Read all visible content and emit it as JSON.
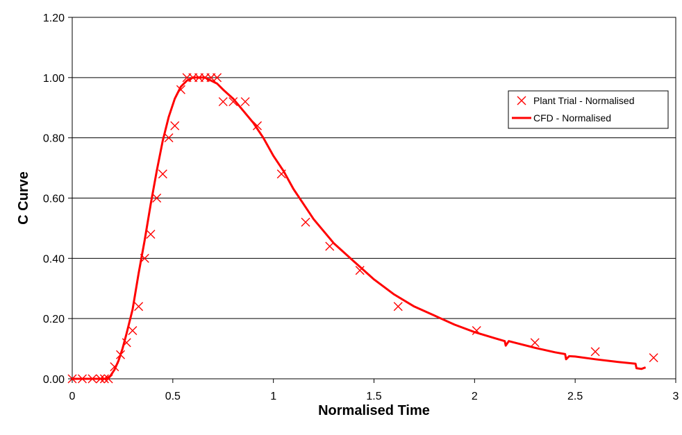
{
  "chart_data": {
    "type": "scatter",
    "title": "",
    "xlabel": "Normalised Time",
    "ylabel": "C Curve",
    "xlim": [
      0,
      3
    ],
    "ylim": [
      0,
      1.2
    ],
    "x_ticks": [
      0,
      0.5,
      1,
      1.5,
      2,
      2.5,
      3
    ],
    "x_tick_labels": [
      "0",
      "0.5",
      "1",
      "1.5",
      "2",
      "2.5",
      "3"
    ],
    "y_ticks": [
      0,
      0.2,
      0.4,
      0.6,
      0.8,
      1.0,
      1.2
    ],
    "y_tick_labels": [
      "0.00",
      "0.20",
      "0.40",
      "0.60",
      "0.80",
      "1.00",
      "1.20"
    ],
    "grid": "horizontal",
    "legend_position": "top-right",
    "color": "#ff0000",
    "series": [
      {
        "name": "Plant Trial - Normalised",
        "kind": "markers",
        "marker": "x",
        "points": [
          [
            0.0,
            0.0
          ],
          [
            0.05,
            0.0
          ],
          [
            0.1,
            0.0
          ],
          [
            0.14,
            0.0
          ],
          [
            0.16,
            0.0
          ],
          [
            0.18,
            0.0
          ],
          [
            0.21,
            0.04
          ],
          [
            0.24,
            0.08
          ],
          [
            0.27,
            0.12
          ],
          [
            0.3,
            0.16
          ],
          [
            0.33,
            0.24
          ],
          [
            0.36,
            0.4
          ],
          [
            0.39,
            0.48
          ],
          [
            0.42,
            0.6
          ],
          [
            0.45,
            0.68
          ],
          [
            0.48,
            0.8
          ],
          [
            0.51,
            0.84
          ],
          [
            0.54,
            0.96
          ],
          [
            0.57,
            1.0
          ],
          [
            0.6,
            1.0
          ],
          [
            0.63,
            1.0
          ],
          [
            0.66,
            1.0
          ],
          [
            0.69,
            1.0
          ],
          [
            0.72,
            1.0
          ],
          [
            0.75,
            0.92
          ],
          [
            0.8,
            0.92
          ],
          [
            0.86,
            0.92
          ],
          [
            0.92,
            0.84
          ],
          [
            1.04,
            0.68
          ],
          [
            1.16,
            0.52
          ],
          [
            1.28,
            0.44
          ],
          [
            1.43,
            0.36
          ],
          [
            1.62,
            0.24
          ],
          [
            2.01,
            0.16
          ],
          [
            2.3,
            0.12
          ],
          [
            2.6,
            0.09
          ],
          [
            2.89,
            0.07
          ]
        ]
      },
      {
        "name": "CFD - Normalised",
        "kind": "line",
        "points": [
          [
            0.0,
            0.0
          ],
          [
            0.15,
            0.0
          ],
          [
            0.17,
            0.0
          ],
          [
            0.19,
            0.01
          ],
          [
            0.21,
            0.03
          ],
          [
            0.23,
            0.06
          ],
          [
            0.25,
            0.1
          ],
          [
            0.27,
            0.15
          ],
          [
            0.3,
            0.23
          ],
          [
            0.33,
            0.35
          ],
          [
            0.36,
            0.46
          ],
          [
            0.39,
            0.58
          ],
          [
            0.42,
            0.69
          ],
          [
            0.45,
            0.79
          ],
          [
            0.48,
            0.87
          ],
          [
            0.51,
            0.93
          ],
          [
            0.54,
            0.97
          ],
          [
            0.57,
            0.99
          ],
          [
            0.6,
            1.0
          ],
          [
            0.63,
            1.0
          ],
          [
            0.66,
            1.0
          ],
          [
            0.69,
            0.99
          ],
          [
            0.72,
            0.98
          ],
          [
            0.75,
            0.96
          ],
          [
            0.8,
            0.93
          ],
          [
            0.85,
            0.89
          ],
          [
            0.9,
            0.85
          ],
          [
            0.95,
            0.8
          ],
          [
            1.0,
            0.74
          ],
          [
            1.05,
            0.69
          ],
          [
            1.1,
            0.63
          ],
          [
            1.15,
            0.58
          ],
          [
            1.2,
            0.53
          ],
          [
            1.3,
            0.45
          ],
          [
            1.4,
            0.39
          ],
          [
            1.5,
            0.33
          ],
          [
            1.6,
            0.28
          ],
          [
            1.7,
            0.24
          ],
          [
            1.8,
            0.21
          ],
          [
            1.9,
            0.18
          ],
          [
            2.0,
            0.155
          ],
          [
            2.1,
            0.135
          ],
          [
            2.15,
            0.125
          ],
          [
            2.155,
            0.11
          ],
          [
            2.17,
            0.125
          ],
          [
            2.2,
            0.12
          ],
          [
            2.3,
            0.103
          ],
          [
            2.4,
            0.088
          ],
          [
            2.45,
            0.082
          ],
          [
            2.455,
            0.065
          ],
          [
            2.47,
            0.075
          ],
          [
            2.5,
            0.074
          ],
          [
            2.6,
            0.065
          ],
          [
            2.7,
            0.057
          ],
          [
            2.8,
            0.05
          ],
          [
            2.805,
            0.035
          ],
          [
            2.83,
            0.033
          ],
          [
            2.85,
            0.038
          ]
        ]
      }
    ]
  }
}
